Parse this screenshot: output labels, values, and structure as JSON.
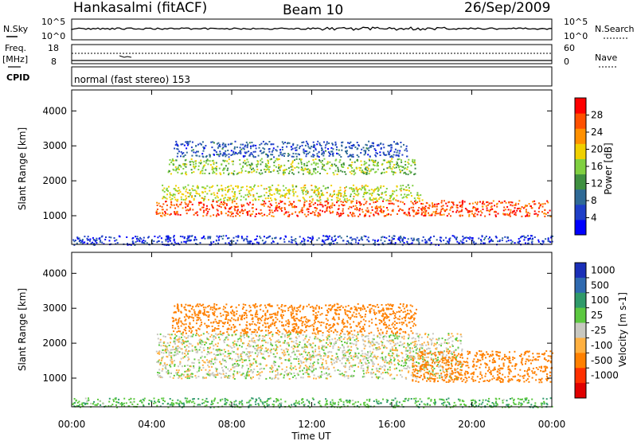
{
  "header": {
    "station": "Hankasalmi (fitACF)",
    "beam": "Beam 10",
    "date": "26/Sep/2009"
  },
  "top_panel": {
    "nsky_label": "N.Sky",
    "nsearch_label": "N.Search",
    "noise_ticks": [
      "10^5",
      "10^0"
    ],
    "freq_label": "Freq.",
    "freq_unit": "[MHz]",
    "freq_ticks": [
      "18",
      "8"
    ],
    "nave_label": "Nave",
    "nave_ticks": [
      "60",
      "0"
    ],
    "cpid_label": "CPID",
    "cpid_text": "normal (fast stereo) 153"
  },
  "chart_data": [
    {
      "type": "heatmap",
      "name": "power",
      "xlabel": "Time UT",
      "ylabel": "Slant Range [km]",
      "x_ticks": [
        "00:00",
        "04:00",
        "08:00",
        "12:00",
        "16:00",
        "20:00",
        "00:00"
      ],
      "xlim_hours": [
        0,
        24
      ],
      "ylim": [
        180,
        4600
      ],
      "y_ticks": [
        1000,
        2000,
        3000,
        4000
      ],
      "colorbar": {
        "label": "Power [dB]",
        "ticks": [
          4,
          8,
          12,
          16,
          20,
          24,
          28
        ],
        "range": [
          0,
          32
        ],
        "colors": [
          "#0000ff",
          "#1f3fc8",
          "#2f6a96",
          "#3f9040",
          "#80d040",
          "#f0d000",
          "#ff9000",
          "#ff5000",
          "#ff0000"
        ]
      },
      "scatter_regions": [
        {
          "t_start": 4.2,
          "t_end": 23.9,
          "range_low": 1000,
          "range_high": 1450,
          "power_db": 27
        },
        {
          "t_start": 4.5,
          "t_end": 17.5,
          "range_low": 1450,
          "range_high": 1900,
          "power_db": 18
        },
        {
          "t_start": 4.8,
          "t_end": 17.2,
          "range_low": 2200,
          "range_high": 2650,
          "power_db": 16
        },
        {
          "t_start": 5.0,
          "t_end": 16.8,
          "range_low": 2700,
          "range_high": 3150,
          "power_db": 7
        },
        {
          "t_start": 0.0,
          "t_end": 24.0,
          "range_low": 180,
          "range_high": 450,
          "power_db": 5
        }
      ]
    },
    {
      "type": "heatmap",
      "name": "velocity",
      "xlabel": "Time UT",
      "ylabel": "Slant Range [km]",
      "x_ticks": [
        "00:00",
        "04:00",
        "08:00",
        "12:00",
        "16:00",
        "20:00",
        "00:00"
      ],
      "xlim_hours": [
        0,
        24
      ],
      "ylim": [
        180,
        4600
      ],
      "y_ticks": [
        1000,
        2000,
        3000,
        4000
      ],
      "colorbar": {
        "label": "Velocity [m s-1]",
        "ticks": [
          "1000",
          "500",
          "100",
          "25",
          "-25",
          "-100",
          "-500",
          "-1000"
        ],
        "colors": [
          "#1a2fb8",
          "#2f6ab0",
          "#2f9a6a",
          "#5cc840",
          "#c8c8c0",
          "#ffb040",
          "#ff8000",
          "#ff3000",
          "#e00000"
        ]
      },
      "scatter_regions": [
        {
          "t_start": 4.2,
          "t_end": 19.5,
          "range_low": 1000,
          "range_high": 2300,
          "velocity": 0
        },
        {
          "t_start": 5.0,
          "t_end": 17.2,
          "range_low": 2300,
          "range_high": 3150,
          "velocity": -300
        },
        {
          "t_start": 17.0,
          "t_end": 24.0,
          "range_low": 900,
          "range_high": 1800,
          "velocity": -200
        },
        {
          "t_start": 0.0,
          "t_end": 24.0,
          "range_low": 180,
          "range_high": 450,
          "velocity": 80
        }
      ]
    }
  ]
}
